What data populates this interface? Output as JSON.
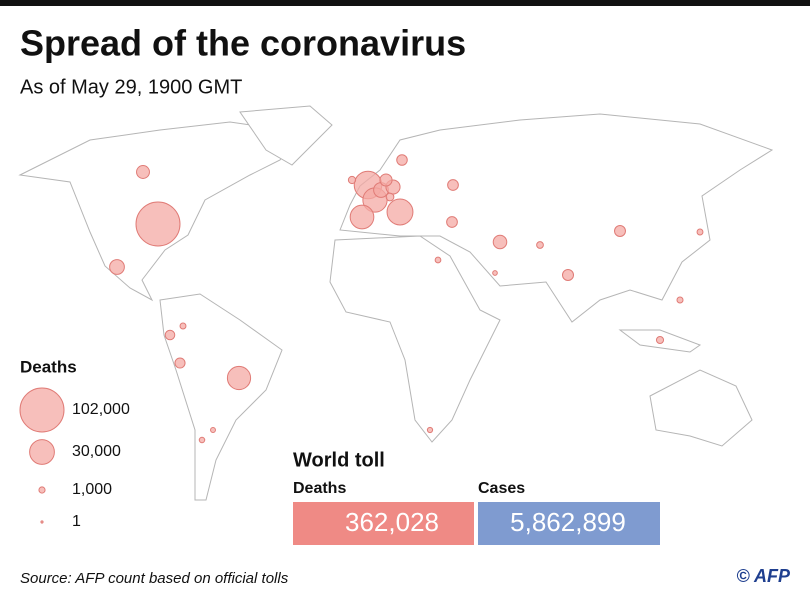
{
  "header": {
    "title": "Spread of the coronavirus",
    "subtitle": "As of May 29, 1900 GMT"
  },
  "map": {
    "bubble_color": "#f4a9a4",
    "bubbles": [
      102000,
      26000,
      37800,
      33000,
      28700,
      27100,
      9400,
      8500,
      9400,
      6900,
      7700,
      4400,
      5900,
      4200,
      4700,
      3800,
      3300,
      4400,
      4634,
      700,
      900,
      800,
      1500,
      1300,
      1600,
      1900,
      400,
      500,
      880,
      950,
      600
    ]
  },
  "legend": {
    "title": "Deaths",
    "entries": [
      {
        "value": 102000,
        "label": "102,000"
      },
      {
        "value": 30000,
        "label": "30,000"
      },
      {
        "value": 1000,
        "label": "1,000"
      },
      1
    ]
  },
  "world_toll": {
    "title": "World toll",
    "deaths": {
      "label": "Deaths",
      "value": {
        "value": 362028,
        "label": "362,028"
      },
      "color": "#ef8a85"
    },
    "cases": {
      "label": "Cases",
      "value": {
        "value": 5862899,
        "label": "5,862,899"
      },
      "color": "#7f9bd0"
    }
  },
  "source": "Source: AFP count based on official tolls",
  "credit": "© AFP"
}
